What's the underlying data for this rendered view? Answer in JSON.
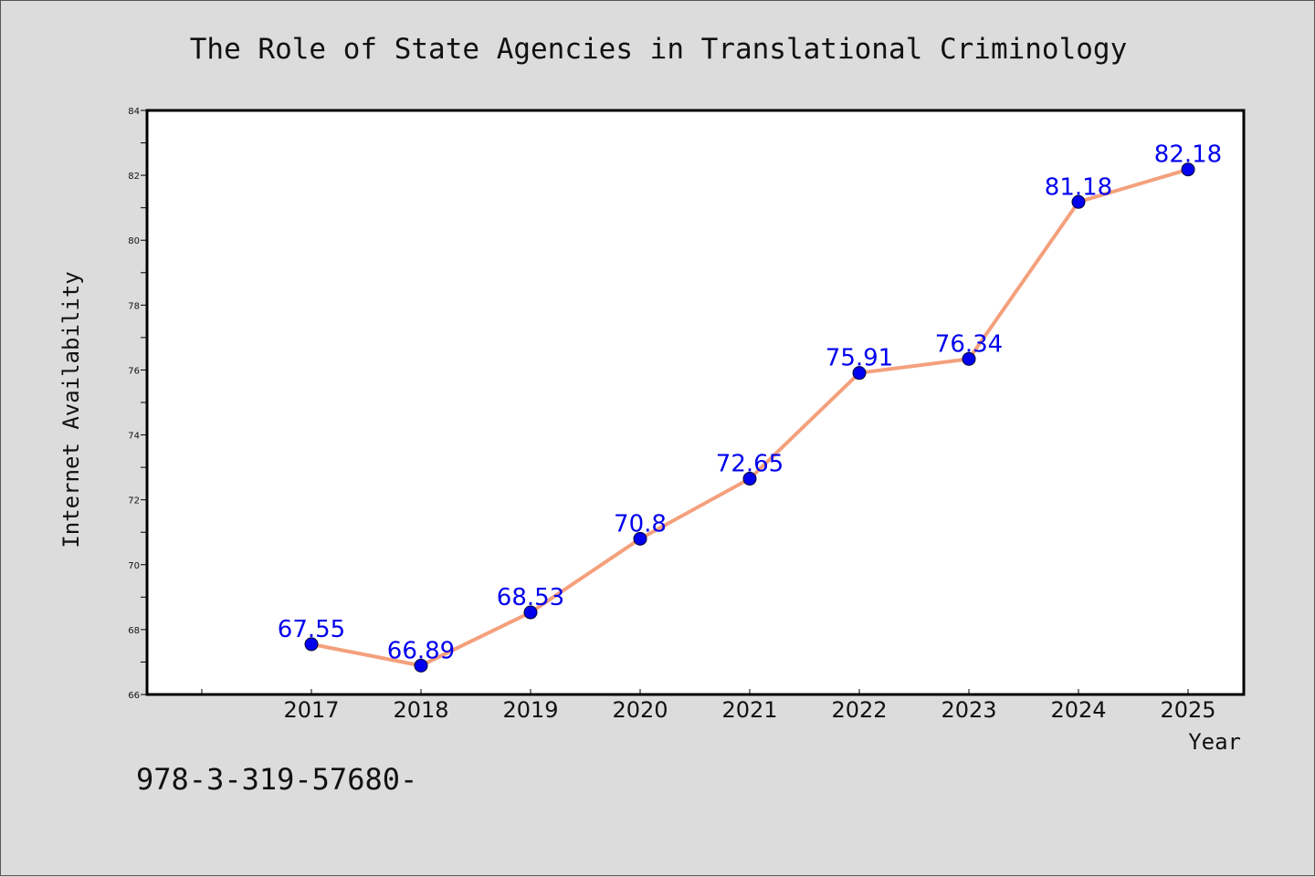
{
  "chart_data": {
    "type": "line",
    "title": "The Role of State Agencies in Translational Criminology",
    "xlabel": "Year",
    "ylabel": "Internet Availability",
    "categories": [
      "2017",
      "2018",
      "2019",
      "2020",
      "2021",
      "2022",
      "2023",
      "2024",
      "2025"
    ],
    "series": [
      {
        "values": [
          67.55,
          66.89,
          68.53,
          70.8,
          72.65,
          75.91,
          76.34,
          81.18,
          82.18
        ],
        "data_labels": [
          "67.55",
          "66.89",
          "68.53",
          "70.8",
          "72.65",
          "75.91",
          "76.34",
          "81.18",
          "82.18"
        ],
        "line_color": "#f4a07c",
        "marker_color": "#0000ee"
      }
    ],
    "ylim": [
      66,
      84
    ],
    "yticks": [
      "66",
      "68",
      "70",
      "72",
      "74",
      "76",
      "78",
      "80",
      "82",
      "84"
    ],
    "label_color": "#0000ee",
    "grid": false,
    "legend": "none"
  },
  "footnote": "978-3-319-57680-"
}
